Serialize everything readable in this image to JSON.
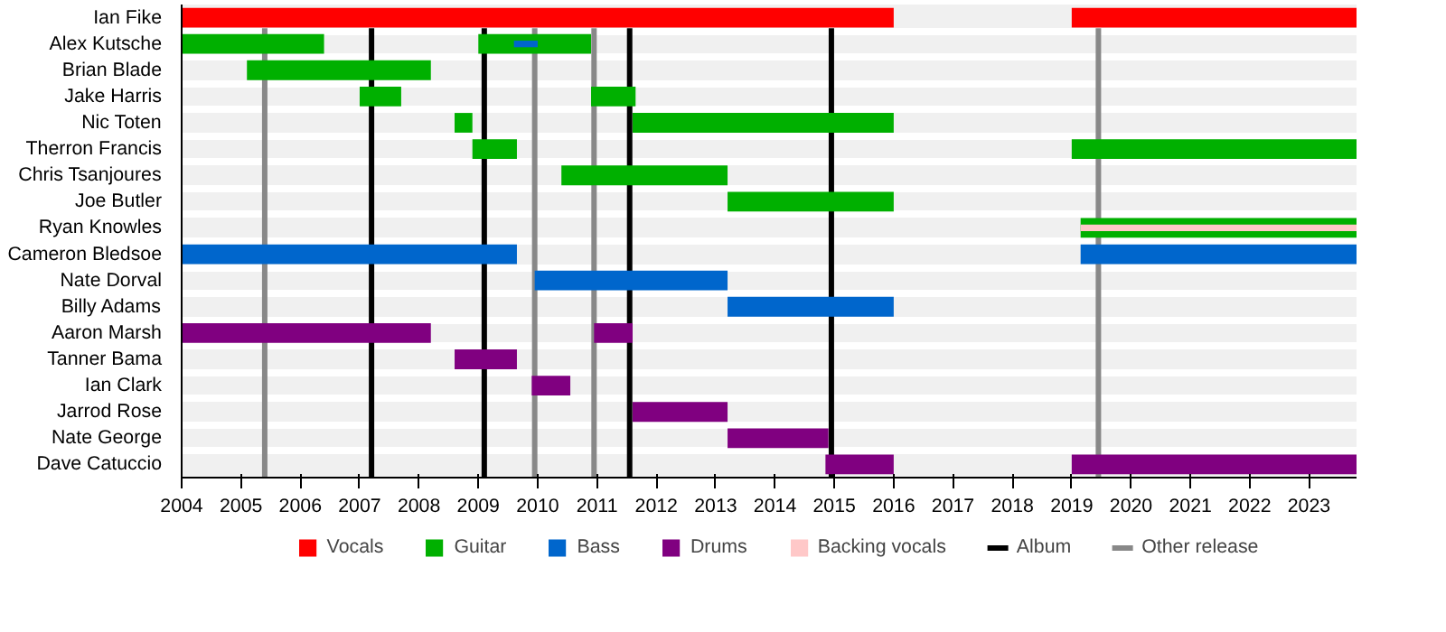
{
  "chart_data": {
    "type": "bar",
    "orientation": "horizontal",
    "categories": [
      "Ian Fike",
      "Alex Kutsche",
      "Brian Blade",
      "Jake Harris",
      "Nic Toten",
      "Therron Francis",
      "Chris Tsanjoures",
      "Joe Butler",
      "Ryan Knowles",
      "Cameron Bledsoe",
      "Nate Dorval",
      "Billy Adams",
      "Aaron Marsh",
      "Tanner Bama",
      "Ian Clark",
      "Jarrod Rose",
      "Nate George",
      "Dave Catuccio"
    ],
    "series": [
      {
        "name": "Vocals",
        "color": "#ff0000",
        "base": [
          2004,
          null,
          null,
          null,
          null,
          null,
          null,
          null,
          null,
          null,
          null,
          null,
          null,
          null,
          null,
          null,
          null,
          null
        ],
        "values": [
          12,
          null,
          null,
          null,
          null,
          null,
          null,
          null,
          null,
          null,
          null,
          null,
          null,
          null,
          null,
          null,
          null,
          null
        ]
      },
      {
        "color": "#ff0000",
        "base": [
          2019,
          null,
          null,
          null,
          null,
          null,
          null,
          null,
          null,
          null,
          null,
          null,
          null,
          null,
          null,
          null,
          null,
          null
        ],
        "values": [
          4.8,
          null,
          null,
          null,
          null,
          null,
          null,
          null,
          null,
          null,
          null,
          null,
          null,
          null,
          null,
          null,
          null,
          null
        ]
      },
      {
        "name": "Guitar",
        "color": "#00b000",
        "base": [
          null,
          2004,
          2005.1,
          2007,
          2008.6,
          2008.9,
          2010.4,
          2013.2,
          2019.15,
          null,
          null,
          null,
          null,
          null,
          null,
          null,
          null,
          null
        ],
        "values": [
          null,
          2.4,
          3.1,
          0.7,
          0.3,
          0.75,
          2.8,
          2.8,
          4.65,
          null,
          null,
          null,
          null,
          null,
          null,
          null,
          null,
          null
        ]
      },
      {
        "color": "#00b000",
        "base": [
          null,
          2009,
          null,
          2010.9,
          2011.6,
          2019,
          null,
          null,
          null,
          null,
          null,
          null,
          null,
          null,
          null,
          null,
          null,
          null
        ],
        "values": [
          null,
          1.9,
          null,
          0.75,
          4.4,
          4.8,
          null,
          null,
          null,
          null,
          null,
          null,
          null,
          null,
          null,
          null,
          null,
          null
        ]
      },
      {
        "name": "Bass",
        "color": "#0066cc",
        "base": [
          null,
          2009.6,
          null,
          null,
          null,
          null,
          null,
          null,
          null,
          2004,
          2009.95,
          2013.2,
          null,
          null,
          null,
          null,
          null,
          null
        ],
        "values": [
          null,
          0.4,
          null,
          null,
          null,
          null,
          null,
          null,
          null,
          5.65,
          3.25,
          2.8,
          null,
          null,
          null,
          null,
          null,
          null
        ]
      },
      {
        "color": "#0066cc",
        "base": [
          null,
          null,
          null,
          null,
          null,
          null,
          null,
          null,
          null,
          2019.15,
          null,
          null,
          null,
          null,
          null,
          null,
          null,
          null
        ],
        "values": [
          null,
          null,
          null,
          null,
          null,
          null,
          null,
          null,
          null,
          4.65,
          null,
          null,
          null,
          null,
          null,
          null,
          null,
          null
        ]
      },
      {
        "name": "Drums",
        "color": "#800080",
        "base": [
          null,
          null,
          null,
          null,
          null,
          null,
          null,
          null,
          null,
          null,
          null,
          null,
          2004,
          2008.6,
          2009.9,
          2011.6,
          2013.2,
          2014.85
        ],
        "values": [
          null,
          null,
          null,
          null,
          null,
          null,
          null,
          null,
          null,
          null,
          null,
          null,
          4.2,
          1.05,
          0.65,
          1.6,
          1.7,
          1.15
        ]
      },
      {
        "color": "#800080",
        "base": [
          null,
          null,
          null,
          null,
          null,
          null,
          null,
          null,
          null,
          null,
          null,
          null,
          2010.95,
          null,
          null,
          null,
          null,
          2019
        ],
        "values": [
          null,
          null,
          null,
          null,
          null,
          null,
          null,
          null,
          null,
          null,
          null,
          null,
          0.65,
          null,
          null,
          null,
          null,
          4.8
        ]
      },
      {
        "name": "Backing vocals",
        "color": "#ffc8c8",
        "base": [
          null,
          null,
          null,
          null,
          null,
          null,
          null,
          null,
          2019.15,
          null,
          null,
          null,
          null,
          null,
          null,
          null,
          null,
          null
        ],
        "values": [
          null,
          null,
          null,
          null,
          null,
          null,
          null,
          null,
          4.65,
          null,
          null,
          null,
          null,
          null,
          null,
          null,
          null,
          null
        ]
      }
    ],
    "ref_lines": [
      {
        "axis": "x",
        "value": 2007.2,
        "label": "Album",
        "color": "#000000"
      },
      {
        "axis": "x",
        "value": 2009.1,
        "color": "#000000"
      },
      {
        "axis": "x",
        "value": 2011.55,
        "color": "#000000"
      },
      {
        "axis": "x",
        "value": 2014.95,
        "color": "#000000"
      },
      {
        "axis": "x",
        "value": 2005.4,
        "label": "Other release",
        "color": "#888888"
      },
      {
        "axis": "x",
        "value": 2009.95,
        "color": "#888888"
      },
      {
        "axis": "x",
        "value": 2010.95,
        "color": "#888888"
      },
      {
        "axis": "x",
        "value": 2019.45,
        "color": "#888888"
      }
    ],
    "xlim": [
      2004,
      2023.8
    ],
    "xticks": [
      2004,
      2005,
      2006,
      2007,
      2008,
      2009,
      2010,
      2011,
      2012,
      2013,
      2014,
      2015,
      2016,
      2017,
      2018,
      2019,
      2020,
      2021,
      2022,
      2023
    ],
    "legend": "bottom"
  }
}
